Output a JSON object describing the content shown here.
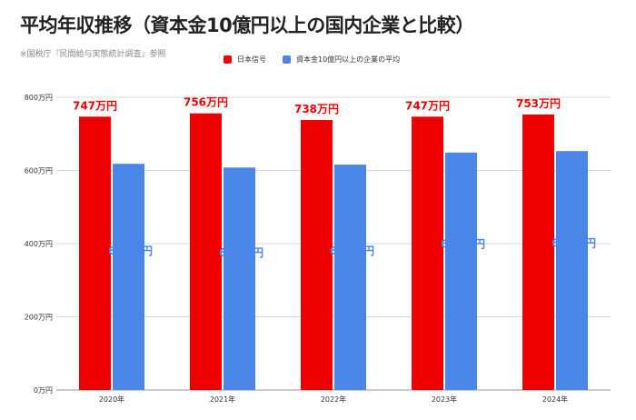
{
  "page": {
    "title": "平均年収推移（資本金10億円以上の国内企業と比較）",
    "note": "※国税庁『民間給与実態統計調査』参照"
  },
  "chart_data": {
    "type": "bar",
    "categories": [
      "2020年",
      "2021年",
      "2022年",
      "2023年",
      "2024年"
    ],
    "series": [
      {
        "name": "日本信号",
        "values": [
          747,
          756,
          738,
          747,
          753
        ],
        "labels": [
          "747万円",
          "756万円",
          "738万円",
          "747万円",
          "753万円"
        ],
        "color": "#ee0000"
      },
      {
        "name": "資本金10億円以上の企業の平均",
        "values": [
          618,
          608,
          616,
          649,
          653
        ],
        "labels": [
          "618万円",
          "608万円",
          "616万円",
          "649万円",
          "653万円"
        ],
        "color": "#4a86e8"
      }
    ],
    "yticks": [
      0,
      200,
      400,
      600,
      800
    ],
    "ytick_labels": [
      "0万円",
      "200万円",
      "400万円",
      "600万円",
      "800万円"
    ],
    "ylim": [
      0,
      800
    ],
    "grid": true,
    "legend_position": "top"
  }
}
